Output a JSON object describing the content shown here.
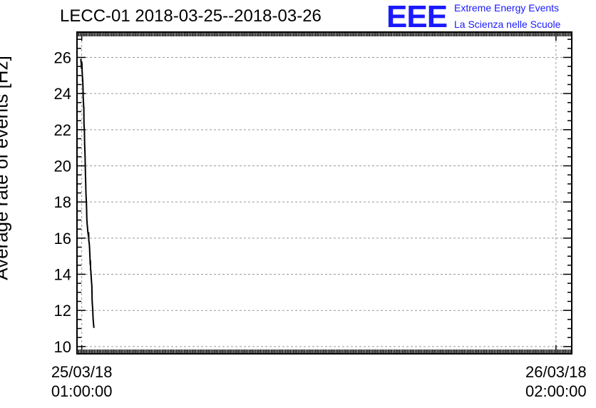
{
  "chart_data": {
    "type": "line",
    "title": "LECC-01 2018-03-25--2018-03-26",
    "ylabel": "Average rate of events [Hz]",
    "xlabel": "",
    "ylim": [
      9.6,
      27.4
    ],
    "xlim": [
      "2018-03-25 00:45:00",
      "2018-03-26 02:50:00"
    ],
    "y_ticks": [
      10,
      12,
      14,
      16,
      18,
      20,
      22,
      24,
      26
    ],
    "x_ticks": [
      {
        "x": "2018-03-25 01:00:00",
        "date": "25/03/18",
        "time": "01:00:00"
      },
      {
        "x": "2018-03-26 02:00:00",
        "date": "26/03/18",
        "time": "02:00:00"
      }
    ],
    "grid": true,
    "series": [
      {
        "color": "#000000",
        "points": [
          [
            "2018-03-25 00:57:00",
            25.9
          ],
          [
            "2018-03-25 00:58:30",
            25.65
          ],
          [
            "2018-03-25 00:59:15",
            25.4
          ],
          [
            "2018-03-25 00:59:51",
            25.75
          ],
          [
            "2018-03-25 01:00:41",
            25.6
          ],
          [
            "2018-03-25 01:01:15",
            25.25
          ],
          [
            "2018-03-25 01:02:15",
            24.95
          ],
          [
            "2018-03-25 01:03:15",
            24.7
          ],
          [
            "2018-03-25 01:04:00",
            24.35
          ],
          [
            "2018-03-25 01:04:41",
            23.75
          ],
          [
            "2018-03-25 01:05:15",
            23.6
          ],
          [
            "2018-03-25 01:05:45",
            23.4
          ],
          [
            "2018-03-25 01:06:15",
            23.2
          ],
          [
            "2018-03-25 01:06:35",
            23.25
          ],
          [
            "2018-03-25 01:07:10",
            22.3
          ],
          [
            "2018-03-25 01:08:24",
            21.95
          ],
          [
            "2018-03-25 01:09:10",
            21.2
          ],
          [
            "2018-03-25 01:10:15",
            20.7
          ],
          [
            "2018-03-25 01:11:00",
            20.2
          ],
          [
            "2018-03-25 01:11:50",
            19.45
          ],
          [
            "2018-03-25 01:12:30",
            19.1
          ],
          [
            "2018-03-25 01:13:15",
            18.55
          ],
          [
            "2018-03-25 01:14:00",
            18.2
          ],
          [
            "2018-03-25 01:14:40",
            17.95
          ],
          [
            "2018-03-25 01:15:20",
            17.55
          ],
          [
            "2018-03-25 01:16:05",
            17.05
          ],
          [
            "2018-03-25 01:17:10",
            16.75
          ],
          [
            "2018-03-25 01:18:20",
            16.55
          ],
          [
            "2018-03-25 01:19:15",
            16.35
          ],
          [
            "2018-03-25 01:20:10",
            16.25
          ],
          [
            "2018-03-25 01:21:05",
            16.1
          ],
          [
            "2018-03-25 01:21:30",
            16.2
          ],
          [
            "2018-03-25 01:21:50",
            16.3
          ],
          [
            "2018-03-25 01:22:20",
            15.85
          ],
          [
            "2018-03-25 01:23:10",
            15.8
          ],
          [
            "2018-03-25 01:24:00",
            15.65
          ],
          [
            "2018-03-25 01:24:50",
            15.4
          ],
          [
            "2018-03-25 01:25:35",
            15.1
          ],
          [
            "2018-03-25 01:26:10",
            14.85
          ],
          [
            "2018-03-25 01:26:45",
            14.55
          ],
          [
            "2018-03-25 01:27:25",
            14.75
          ],
          [
            "2018-03-25 01:28:00",
            14.25
          ],
          [
            "2018-03-25 01:28:45",
            14.2
          ],
          [
            "2018-03-25 01:29:30",
            14.0
          ],
          [
            "2018-03-25 01:30:20",
            13.75
          ],
          [
            "2018-03-25 01:31:10",
            13.5
          ],
          [
            "2018-03-25 01:31:55",
            13.4
          ],
          [
            "2018-03-25 01:32:45",
            12.6
          ],
          [
            "2018-03-25 01:33:35",
            12.35
          ],
          [
            "2018-03-25 01:34:50",
            12.05
          ],
          [
            "2018-03-25 01:35:50",
            11.6
          ],
          [
            "2018-03-25 01:37:10",
            11.3
          ],
          [
            "2018-03-25 01:38:30",
            11.05
          ]
        ]
      }
    ]
  },
  "logo": {
    "mark": "EEE",
    "line1": "Extreme Energy Events",
    "line2": "La Scienza nelle Scuole"
  }
}
